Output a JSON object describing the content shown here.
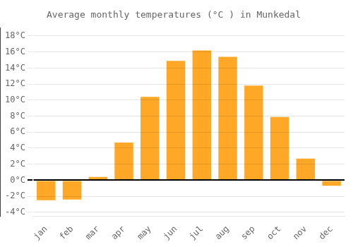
{
  "chart_data": {
    "type": "bar",
    "title": "Average monthly temperatures (°C ) in Munkedal",
    "categories": [
      "jan",
      "feb",
      "mar",
      "apr",
      "may",
      "jun",
      "jul",
      "aug",
      "sep",
      "oct",
      "nov",
      "dec"
    ],
    "values": [
      -2.5,
      -2.4,
      0.4,
      4.7,
      10.4,
      14.9,
      16.2,
      15.4,
      11.8,
      7.9,
      2.7,
      -0.7
    ],
    "color": "#FFA726",
    "ylim": [
      -4.5,
      19
    ],
    "yticks": [
      {
        "value": -4,
        "label": "-4°C"
      },
      {
        "value": -2,
        "label": "-2°C"
      },
      {
        "value": 0,
        "label": "0°C"
      },
      {
        "value": 2,
        "label": "2°C"
      },
      {
        "value": 4,
        "label": "4°C"
      },
      {
        "value": 6,
        "label": "6°C"
      },
      {
        "value": 8,
        "label": "8°C"
      },
      {
        "value": 10,
        "label": "10°C"
      },
      {
        "value": 12,
        "label": "12°C"
      },
      {
        "value": 14,
        "label": "14°C"
      },
      {
        "value": 16,
        "label": "16°C"
      },
      {
        "value": 18,
        "label": "18°C"
      }
    ],
    "grid": true
  }
}
